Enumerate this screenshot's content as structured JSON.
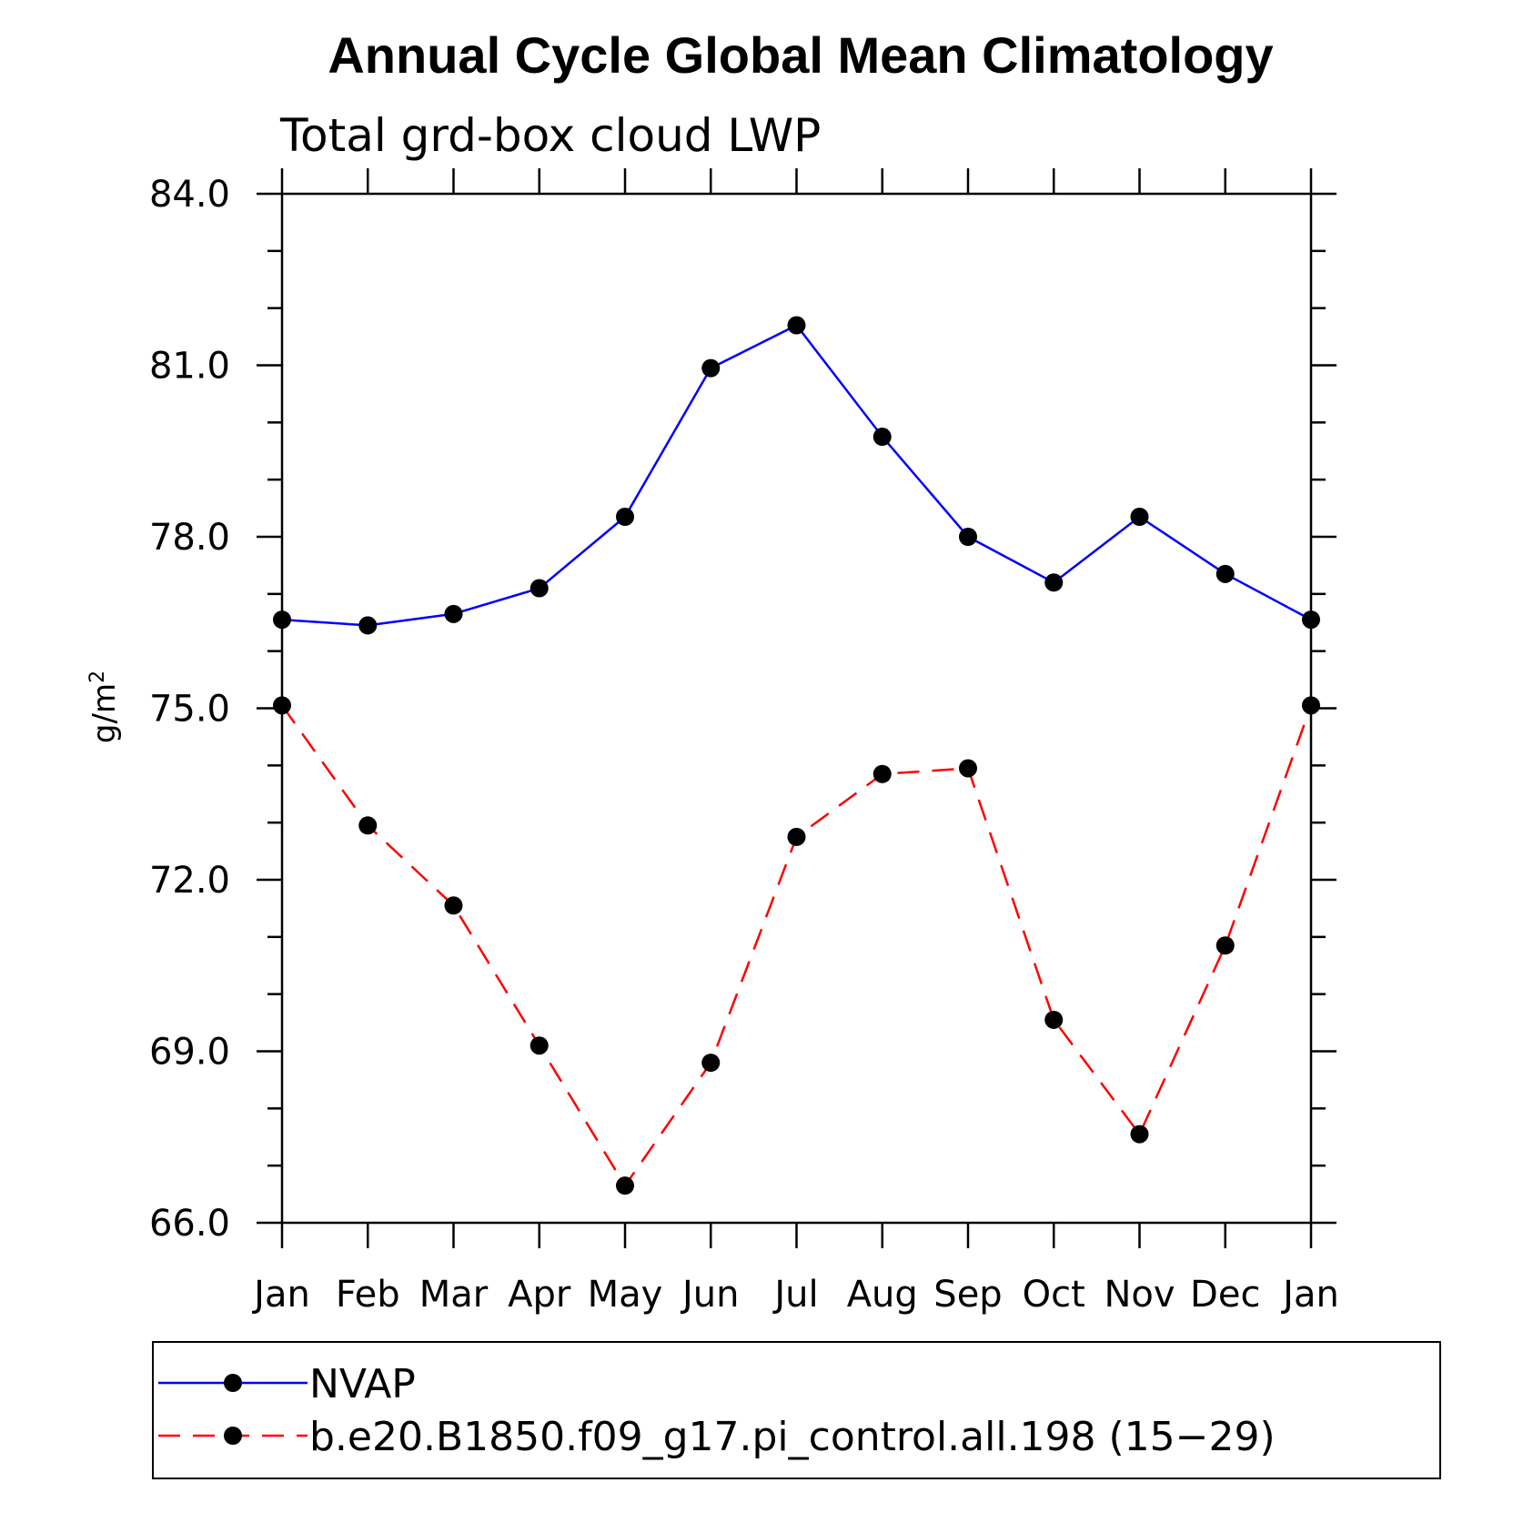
{
  "chart_data": {
    "type": "line",
    "title": "Annual Cycle Global Mean Climatology",
    "subtitle": "Total grd-box cloud LWP",
    "ylabel": "g/m",
    "ylabel_superscript": "2",
    "ylim": [
      66.0,
      84.0
    ],
    "yticks": [
      66.0,
      69.0,
      72.0,
      75.0,
      78.0,
      81.0,
      84.0
    ],
    "ytick_labels": [
      "66.0",
      "69.0",
      "72.0",
      "75.0",
      "78.0",
      "81.0",
      "84.0"
    ],
    "categories": [
      "Jan",
      "Feb",
      "Mar",
      "Apr",
      "May",
      "Jun",
      "Jul",
      "Aug",
      "Sep",
      "Oct",
      "Nov",
      "Dec",
      "Jan"
    ],
    "legend_position": "bottom",
    "grid": false,
    "series": [
      {
        "name": "NVAP",
        "color": "#0000ff",
        "dashed": false,
        "values": [
          76.55,
          76.45,
          76.65,
          77.1,
          78.35,
          80.95,
          81.7,
          79.75,
          78.0,
          77.2,
          78.35,
          77.35,
          76.55
        ]
      },
      {
        "name": "b.e20.B1850.f09_g17.pi_control.all.198 (15−29)",
        "color": "#ff0000",
        "dashed": true,
        "values": [
          75.05,
          72.95,
          71.55,
          69.1,
          66.65,
          68.8,
          72.75,
          73.85,
          73.95,
          69.55,
          67.55,
          70.85,
          75.05
        ]
      }
    ]
  }
}
